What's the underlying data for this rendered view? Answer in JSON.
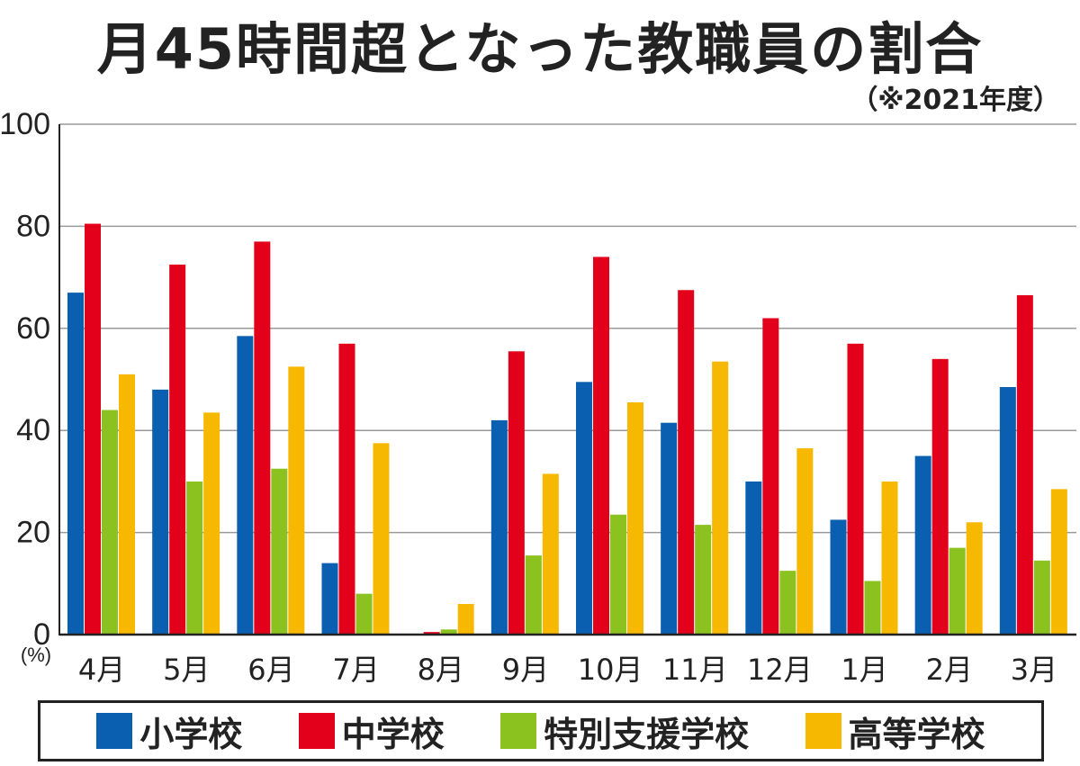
{
  "title": "月45時間超となった教職員の割合",
  "subtitle": "（※2021年度）",
  "chart_data": {
    "type": "bar",
    "ylabel": "(%)",
    "ylim": [
      0,
      100
    ],
    "yticks": [
      0,
      20,
      40,
      60,
      80,
      100
    ],
    "grid": true,
    "legend_position": "bottom",
    "categories": [
      "4月",
      "5月",
      "6月",
      "7月",
      "8月",
      "9月",
      "10月",
      "11月",
      "12月",
      "1月",
      "2月",
      "3月"
    ],
    "series": [
      {
        "name": "小学校",
        "color": "#0b5fb0",
        "values": [
          67,
          48,
          58.5,
          14,
          0,
          42,
          49.5,
          41.5,
          30,
          22.5,
          35,
          48.5
        ]
      },
      {
        "name": "中学校",
        "color": "#e2001a",
        "values": [
          80.5,
          72.5,
          77,
          57,
          0.5,
          55.5,
          74,
          67.5,
          62,
          57,
          54,
          66.5
        ]
      },
      {
        "name": "特別支援学校",
        "color": "#8cc21f",
        "values": [
          44,
          30,
          32.5,
          8,
          1,
          15.5,
          23.5,
          21.5,
          12.5,
          10.5,
          17,
          14.5
        ]
      },
      {
        "name": "高等学校",
        "color": "#f6b800",
        "values": [
          51,
          43.5,
          52.5,
          37.5,
          6,
          31.5,
          45.5,
          53.5,
          36.5,
          30,
          22,
          28.5
        ]
      }
    ]
  }
}
